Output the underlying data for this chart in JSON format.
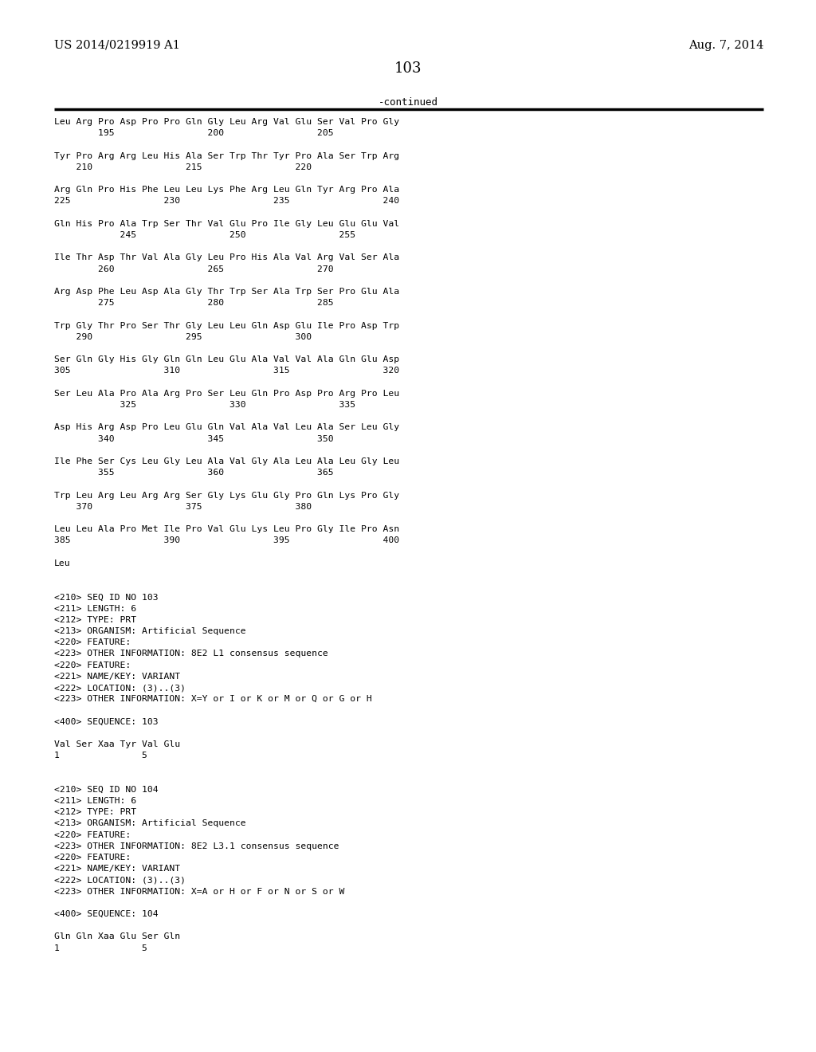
{
  "header_left": "US 2014/0219919 A1",
  "header_right": "Aug. 7, 2014",
  "page_number": "103",
  "continued_label": "-continued",
  "background_color": "#ffffff",
  "text_color": "#000000",
  "lines": [
    "Leu Arg Pro Asp Pro Pro Gln Gly Leu Arg Val Glu Ser Val Pro Gly",
    "        195                 200                 205",
    "",
    "Tyr Pro Arg Arg Leu His Ala Ser Trp Thr Tyr Pro Ala Ser Trp Arg",
    "    210                 215                 220",
    "",
    "Arg Gln Pro His Phe Leu Leu Lys Phe Arg Leu Gln Tyr Arg Pro Ala",
    "225                 230                 235                 240",
    "",
    "Gln His Pro Ala Trp Ser Thr Val Glu Pro Ile Gly Leu Glu Glu Val",
    "            245                 250                 255",
    "",
    "Ile Thr Asp Thr Val Ala Gly Leu Pro His Ala Val Arg Val Ser Ala",
    "        260                 265                 270",
    "",
    "Arg Asp Phe Leu Asp Ala Gly Thr Trp Ser Ala Trp Ser Pro Glu Ala",
    "        275                 280                 285",
    "",
    "Trp Gly Thr Pro Ser Thr Gly Leu Leu Gln Asp Glu Ile Pro Asp Trp",
    "    290                 295                 300",
    "",
    "Ser Gln Gly His Gly Gln Gln Leu Glu Ala Val Val Ala Gln Glu Asp",
    "305                 310                 315                 320",
    "",
    "Ser Leu Ala Pro Ala Arg Pro Ser Leu Gln Pro Asp Pro Arg Pro Leu",
    "            325                 330                 335",
    "",
    "Asp His Arg Asp Pro Leu Glu Gln Val Ala Val Leu Ala Ser Leu Gly",
    "        340                 345                 350",
    "",
    "Ile Phe Ser Cys Leu Gly Leu Ala Val Gly Ala Leu Ala Leu Gly Leu",
    "        355                 360                 365",
    "",
    "Trp Leu Arg Leu Arg Arg Ser Gly Lys Glu Gly Pro Gln Lys Pro Gly",
    "    370                 375                 380",
    "",
    "Leu Leu Ala Pro Met Ile Pro Val Glu Lys Leu Pro Gly Ile Pro Asn",
    "385                 390                 395                 400",
    "",
    "Leu",
    "",
    "",
    "<210> SEQ ID NO 103",
    "<211> LENGTH: 6",
    "<212> TYPE: PRT",
    "<213> ORGANISM: Artificial Sequence",
    "<220> FEATURE:",
    "<223> OTHER INFORMATION: 8E2 L1 consensus sequence",
    "<220> FEATURE:",
    "<221> NAME/KEY: VARIANT",
    "<222> LOCATION: (3)..(3)",
    "<223> OTHER INFORMATION: X=Y or I or K or M or Q or G or H",
    "",
    "<400> SEQUENCE: 103",
    "",
    "Val Ser Xaa Tyr Val Glu",
    "1               5",
    "",
    "",
    "<210> SEQ ID NO 104",
    "<211> LENGTH: 6",
    "<212> TYPE: PRT",
    "<213> ORGANISM: Artificial Sequence",
    "<220> FEATURE:",
    "<223> OTHER INFORMATION: 8E2 L3.1 consensus sequence",
    "<220> FEATURE:",
    "<221> NAME/KEY: VARIANT",
    "<222> LOCATION: (3)..(3)",
    "<223> OTHER INFORMATION: X=A or H or F or N or S or W",
    "",
    "<400> SEQUENCE: 104",
    "",
    "Gln Gln Xaa Glu Ser Gln",
    "1               5"
  ]
}
